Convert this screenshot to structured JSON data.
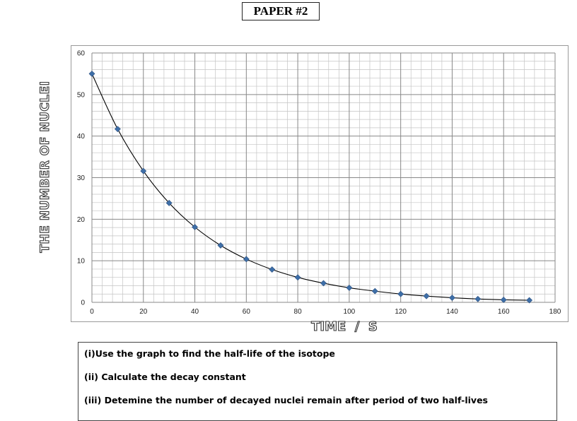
{
  "header": {
    "title": "PAPER #2"
  },
  "questions": [
    "(i)Use the graph to find the half-life of the isotope",
    "(ii) Calculate the decay constant",
    "(iii) Detemine the number of decayed nuclei remain after period of two half-lives"
  ],
  "chart_data": {
    "type": "scatter",
    "title": "",
    "xlabel": "TIME  /  S",
    "ylabel": "THE NUMBER OF NUCLEI",
    "xlim": [
      0,
      180
    ],
    "ylim": [
      0,
      60
    ],
    "x_ticks": [
      "0",
      "20",
      "40",
      "60",
      "80",
      "100",
      "120",
      "140",
      "160",
      "180"
    ],
    "y_ticks": [
      "0",
      "10",
      "20",
      "30",
      "40",
      "50",
      "60"
    ],
    "grid": true,
    "marker_color": "#3e6fa8",
    "curve_color": "#000000",
    "trendline": "smooth fit",
    "x": [
      0,
      10,
      20,
      30,
      40,
      50,
      60,
      70,
      80,
      90,
      100,
      110,
      120,
      130,
      140,
      150,
      160,
      170
    ],
    "y": [
      55,
      41.7,
      31.6,
      23.9,
      18.1,
      13.7,
      10.4,
      7.9,
      6.0,
      4.6,
      3.5,
      2.7,
      2.0,
      1.5,
      1.1,
      0.8,
      0.6,
      0.5
    ]
  }
}
